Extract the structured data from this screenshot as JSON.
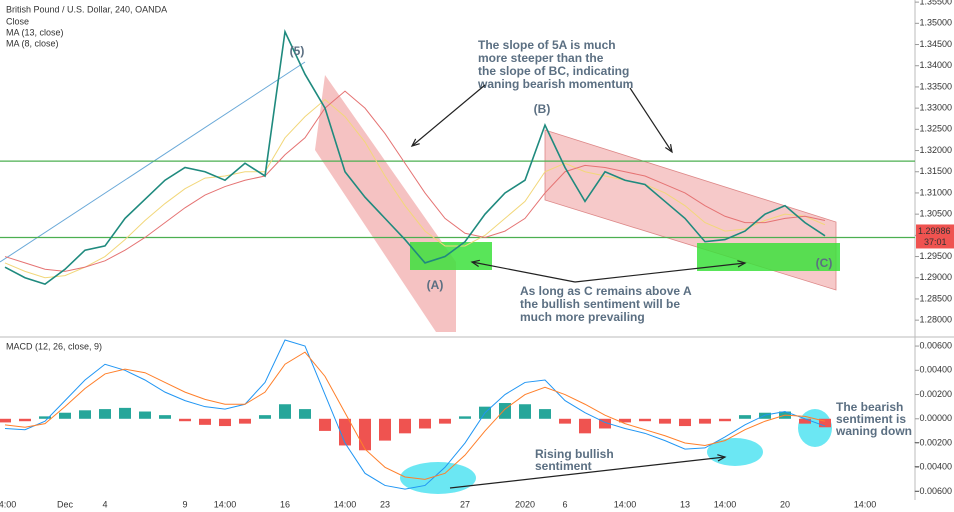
{
  "chart_data": [
    {
      "type": "line",
      "title": "British Pound / U.S. Dollar, 240, OANDA",
      "categories": [
        "14:00",
        null,
        null,
        "Dec",
        null,
        "4",
        null,
        null,
        null,
        "9",
        null,
        "14:00",
        null,
        null,
        "16",
        null,
        null,
        "14:00",
        null,
        "23",
        null,
        null,
        null,
        "27",
        null,
        null,
        "2020",
        null,
        "6",
        null,
        null,
        "14:00",
        null,
        null,
        "13",
        null,
        "14:00",
        null,
        null,
        "20",
        null,
        null,
        null,
        "14:00"
      ],
      "series": [
        {
          "name": "Close",
          "color": "#1f8a7e",
          "values": [
            1.2925,
            1.29,
            1.2885,
            1.292,
            1.2965,
            1.2975,
            1.304,
            1.3085,
            1.313,
            1.316,
            1.315,
            1.313,
            1.317,
            1.314,
            1.348,
            1.338,
            1.33,
            1.315,
            1.309,
            1.304,
            1.299,
            1.2935,
            1.295,
            1.2985,
            1.305,
            1.31,
            1.313,
            1.326,
            1.316,
            1.308,
            1.315,
            1.313,
            1.312,
            1.308,
            1.304,
            1.2985,
            1.299,
            1.301,
            1.305,
            1.307,
            1.303,
            1.2999,
            null,
            null
          ]
        },
        {
          "name": "MA (13, close)",
          "color": "#e57373",
          "values": [
            1.295,
            1.2935,
            1.292,
            1.2915,
            1.2925,
            1.294,
            1.2965,
            1.2995,
            1.303,
            1.3065,
            1.3095,
            1.3115,
            1.313,
            1.314,
            1.319,
            1.323,
            1.33,
            1.334,
            1.33,
            1.324,
            1.317,
            1.31,
            1.304,
            1.3005,
            1.2995,
            1.301,
            1.304,
            1.31,
            1.315,
            1.3165,
            1.316,
            1.315,
            1.314,
            1.312,
            1.31,
            1.307,
            1.3045,
            1.303,
            1.303,
            1.304,
            1.3045,
            1.3035,
            null,
            null
          ]
        },
        {
          "name": "MA (8, close)",
          "color": "#f2d77a",
          "values": [
            1.2935,
            1.2915,
            1.29,
            1.2905,
            1.2925,
            1.295,
            1.299,
            1.3035,
            1.3075,
            1.311,
            1.3135,
            1.314,
            1.315,
            1.315,
            1.323,
            1.328,
            1.332,
            1.328,
            1.322,
            1.314,
            1.307,
            1.301,
            1.2975,
            1.2975,
            1.3,
            1.304,
            1.308,
            1.315,
            1.317,
            1.315,
            1.314,
            1.313,
            1.312,
            1.31,
            1.307,
            1.303,
            1.301,
            1.3015,
            1.3035,
            1.305,
            1.3045,
            1.3025,
            null,
            null
          ]
        }
      ],
      "levels": [
        1.3175,
        1.2995
      ],
      "level_color": "#4caf50",
      "ylim": [
        1.2765,
        1.3555
      ],
      "yticks": [
        {
          "value": 1.28,
          "label": "1.28000"
        },
        {
          "value": 1.285,
          "label": "1.28500"
        },
        {
          "value": 1.29,
          "label": "1.29000"
        },
        {
          "value": 1.295,
          "label": "1.29500"
        },
        {
          "value": 1.3,
          "label": "1.30000"
        },
        {
          "value": 1.305,
          "label": "1.30500"
        },
        {
          "value": 1.31,
          "label": "1.31000"
        },
        {
          "value": 1.315,
          "label": "1.31500"
        },
        {
          "value": 1.32,
          "label": "1.32000"
        },
        {
          "value": 1.325,
          "label": "1.32500"
        },
        {
          "value": 1.33,
          "label": "1.33000"
        },
        {
          "value": 1.335,
          "label": "1.33500"
        },
        {
          "value": 1.34,
          "label": "1.34000"
        },
        {
          "value": 1.345,
          "label": "1.34500"
        },
        {
          "value": 1.35,
          "label": "1.35000"
        },
        {
          "value": 1.355,
          "label": "1.35500"
        }
      ],
      "last_price_label": "1.29986",
      "countdown": "37:01",
      "wave_labels": [
        "(5)",
        "(A)",
        "(B)",
        "(C)"
      ],
      "annotations": [
        [
          "The slope of 5A is much",
          "more steeper than the",
          "the slope of BC, indicating",
          "waning bearish momentum"
        ],
        [
          "As long as C remains above A",
          "the bullish sentiment will be",
          "much more prevailing"
        ]
      ]
    },
    {
      "type": "bar",
      "title": "MACD (12, 26, close, 9)",
      "values": [
        -0.0003,
        -0.0002,
        0.0002,
        0.0005,
        0.0007,
        0.0008,
        0.0009,
        0.0006,
        0.0003,
        -0.0002,
        -0.0005,
        -0.0006,
        -0.0004,
        0.0003,
        0.0012,
        0.0008,
        -0.001,
        -0.0022,
        -0.0026,
        -0.0018,
        -0.0012,
        -0.0008,
        -0.0004,
        0.0002,
        0.001,
        0.0013,
        0.0012,
        0.0008,
        -0.0004,
        -0.0012,
        -0.0008,
        -0.0003,
        -0.0002,
        -0.0004,
        -0.0006,
        -0.0004,
        -0.0002,
        0.0003,
        0.0005,
        0.0006,
        -0.0004,
        -0.0007,
        null,
        null
      ],
      "positive_color": "#26a69a",
      "negative_color": "#ef5350",
      "series": [
        {
          "name": "MACD",
          "color": "#2196f3",
          "values": [
            -0.0008,
            -0.0009,
            -0.0002,
            0.0015,
            0.0032,
            0.0045,
            0.004,
            0.0032,
            0.0022,
            0.0015,
            0.001,
            0.0008,
            0.0012,
            0.003,
            0.0065,
            0.006,
            0.002,
            -0.002,
            -0.0045,
            -0.0055,
            -0.0058,
            -0.0055,
            -0.004,
            -0.002,
            0.0005,
            0.002,
            0.003,
            0.0032,
            0.0015,
            0.0005,
            -0.0003,
            -0.0008,
            -0.0012,
            -0.0018,
            -0.0025,
            -0.0024,
            -0.0015,
            -0.0005,
            0.0003,
            0.0006,
            0,
            -0.0006,
            null,
            null
          ]
        },
        {
          "name": "Signal",
          "color": "#ff7f2a",
          "values": [
            -0.0005,
            -0.0007,
            -0.0004,
            0.001,
            0.0025,
            0.0037,
            0.0041,
            0.0038,
            0.003,
            0.0022,
            0.0016,
            0.0012,
            0.0012,
            0.0022,
            0.0045,
            0.0055,
            0.0035,
            0.0005,
            -0.0025,
            -0.004,
            -0.0048,
            -0.005,
            -0.0045,
            -0.003,
            -0.001,
            0.0008,
            0.002,
            0.0026,
            0.002,
            0.0012,
            0.0003,
            -0.0004,
            -0.0009,
            -0.0014,
            -0.002,
            -0.0022,
            -0.0018,
            -0.0009,
            -0.0002,
            0.0003,
            0.0002,
            -0.0002,
            null,
            null
          ]
        }
      ],
      "ylim": [
        -0.0067,
        0.0065
      ],
      "yticks": [
        {
          "value": 0.006,
          "label": "0.00600"
        },
        {
          "value": 0.004,
          "label": "0.00400"
        },
        {
          "value": 0.002,
          "label": "0.00200"
        },
        {
          "value": 0,
          "label": "0.00000"
        },
        {
          "value": -0.002,
          "label": "−0.00200"
        },
        {
          "value": -0.004,
          "label": "−0.00400"
        },
        {
          "value": -0.006,
          "label": "−0.00600"
        }
      ],
      "annotations": [
        [
          "Rising bullish",
          "sentiment"
        ],
        [
          "The bearish",
          "sentiment is",
          "waning down"
        ]
      ]
    }
  ]
}
